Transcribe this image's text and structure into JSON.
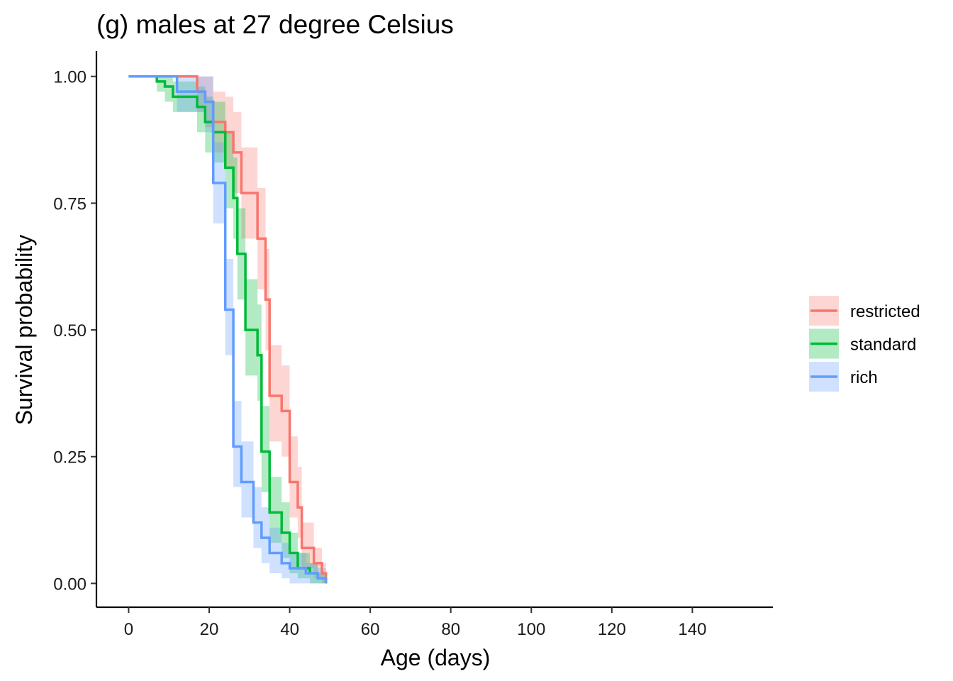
{
  "chart_data": {
    "type": "line",
    "subtype": "kaplan-meier step survival curves with confidence bands",
    "title": "(g) males at 27 degree Celsius",
    "xlabel": "Age (days)",
    "ylabel": "Survival probability",
    "xlim": [
      -8,
      160
    ],
    "ylim": [
      -0.047,
      1.05
    ],
    "x_ticks": [
      0,
      20,
      40,
      60,
      80,
      100,
      120,
      140
    ],
    "x_tick_labels": [
      "0",
      "20",
      "40",
      "60",
      "80",
      "100",
      "120",
      "140"
    ],
    "y_ticks": [
      0,
      0.25,
      0.5,
      0.75,
      1
    ],
    "y_tick_labels": [
      "0.00",
      "0.25",
      "0.50",
      "0.75",
      "1.00"
    ],
    "grid": false,
    "legend_position": "right",
    "series": [
      {
        "name": "restricted",
        "color": "#F8766D",
        "x": [
          0,
          12,
          17,
          19,
          21,
          24,
          26,
          28,
          30,
          32,
          34,
          35,
          38,
          40,
          42,
          43,
          46,
          48,
          49
        ],
        "y": [
          1.0,
          1.0,
          0.97,
          0.95,
          0.91,
          0.89,
          0.85,
          0.77,
          0.77,
          0.68,
          0.56,
          0.37,
          0.34,
          0.2,
          0.15,
          0.07,
          0.04,
          0.02,
          0.0
        ],
        "lower": [
          1.0,
          1.0,
          0.93,
          0.9,
          0.85,
          0.82,
          0.77,
          0.68,
          0.68,
          0.58,
          0.46,
          0.28,
          0.25,
          0.13,
          0.09,
          0.03,
          0.01,
          0.0,
          0.0
        ],
        "upper": [
          1.0,
          1.0,
          1.0,
          1.0,
          0.97,
          0.96,
          0.93,
          0.86,
          0.86,
          0.78,
          0.66,
          0.47,
          0.43,
          0.29,
          0.23,
          0.12,
          0.07,
          0.04,
          0.0
        ]
      },
      {
        "name": "standard",
        "color": "#00BA38",
        "x": [
          0,
          7,
          9,
          11,
          17,
          19,
          21,
          24,
          26,
          27,
          29,
          32,
          33,
          35,
          38,
          40,
          42,
          45,
          47,
          49
        ],
        "y": [
          1.0,
          0.99,
          0.98,
          0.96,
          0.94,
          0.91,
          0.89,
          0.82,
          0.76,
          0.65,
          0.5,
          0.45,
          0.26,
          0.14,
          0.1,
          0.06,
          0.03,
          0.02,
          0.01,
          0.0
        ],
        "lower": [
          1.0,
          0.97,
          0.95,
          0.93,
          0.89,
          0.85,
          0.83,
          0.74,
          0.68,
          0.56,
          0.41,
          0.36,
          0.18,
          0.08,
          0.05,
          0.02,
          0.01,
          0.0,
          0.0,
          0.0
        ],
        "upper": [
          1.0,
          1.0,
          1.0,
          0.99,
          0.98,
          0.96,
          0.95,
          0.89,
          0.84,
          0.74,
          0.6,
          0.55,
          0.35,
          0.21,
          0.16,
          0.1,
          0.06,
          0.04,
          0.02,
          0.0
        ]
      },
      {
        "name": "rich",
        "color": "#619CFF",
        "x": [
          0,
          12,
          17,
          19,
          21,
          24,
          26,
          28,
          31,
          33,
          35,
          38,
          40,
          44,
          47,
          49
        ],
        "y": [
          1.0,
          0.97,
          0.97,
          0.95,
          0.79,
          0.54,
          0.27,
          0.2,
          0.12,
          0.09,
          0.06,
          0.04,
          0.03,
          0.02,
          0.01,
          0.0
        ],
        "lower": [
          1.0,
          0.93,
          0.93,
          0.89,
          0.71,
          0.45,
          0.19,
          0.13,
          0.07,
          0.04,
          0.02,
          0.01,
          0.0,
          0.0,
          0.0,
          0.0
        ],
        "upper": [
          1.0,
          1.0,
          1.0,
          1.0,
          0.87,
          0.64,
          0.36,
          0.28,
          0.19,
          0.15,
          0.11,
          0.08,
          0.06,
          0.04,
          0.03,
          0.0
        ]
      }
    ]
  }
}
